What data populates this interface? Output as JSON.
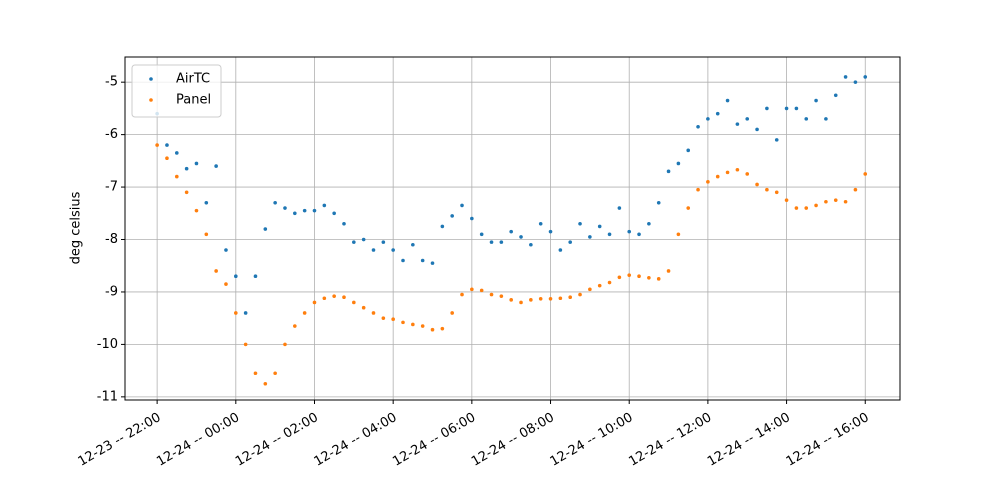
{
  "chart_data": {
    "type": "scatter",
    "ylabel": "deg celsius",
    "x": [
      "12-23 -- 22:00",
      "12-23 -- 22:15",
      "12-23 -- 22:30",
      "12-23 -- 22:45",
      "12-23 -- 23:00",
      "12-23 -- 23:15",
      "12-23 -- 23:30",
      "12-23 -- 23:45",
      "12-24 -- 00:00",
      "12-24 -- 00:15",
      "12-24 -- 00:30",
      "12-24 -- 00:45",
      "12-24 -- 01:00",
      "12-24 -- 01:15",
      "12-24 -- 01:30",
      "12-24 -- 01:45",
      "12-24 -- 02:00",
      "12-24 -- 02:15",
      "12-24 -- 02:30",
      "12-24 -- 02:45",
      "12-24 -- 03:00",
      "12-24 -- 03:15",
      "12-24 -- 03:30",
      "12-24 -- 03:45",
      "12-24 -- 04:00",
      "12-24 -- 04:15",
      "12-24 -- 04:30",
      "12-24 -- 04:45",
      "12-24 -- 05:00",
      "12-24 -- 05:15",
      "12-24 -- 05:30",
      "12-24 -- 05:45",
      "12-24 -- 06:00",
      "12-24 -- 06:15",
      "12-24 -- 06:30",
      "12-24 -- 06:45",
      "12-24 -- 07:00",
      "12-24 -- 07:15",
      "12-24 -- 07:30",
      "12-24 -- 07:45",
      "12-24 -- 08:00",
      "12-24 -- 08:15",
      "12-24 -- 08:30",
      "12-24 -- 08:45",
      "12-24 -- 09:00",
      "12-24 -- 09:15",
      "12-24 -- 09:30",
      "12-24 -- 09:45",
      "12-24 -- 10:00",
      "12-24 -- 10:15",
      "12-24 -- 10:30",
      "12-24 -- 10:45",
      "12-24 -- 11:00",
      "12-24 -- 11:15",
      "12-24 -- 11:30",
      "12-24 -- 11:45",
      "12-24 -- 12:00",
      "12-24 -- 12:15",
      "12-24 -- 12:30",
      "12-24 -- 12:45",
      "12-24 -- 13:00",
      "12-24 -- 13:15",
      "12-24 -- 13:30",
      "12-24 -- 13:45",
      "12-24 -- 14:00",
      "12-24 -- 14:15",
      "12-24 -- 14:30",
      "12-24 -- 14:45",
      "12-24 -- 15:00",
      "12-24 -- 15:15",
      "12-24 -- 15:30",
      "12-24 -- 15:45",
      "12-24 -- 16:00"
    ],
    "series": [
      {
        "name": "AirTC",
        "color": "#1f77b4",
        "values": [
          -5.6,
          -6.2,
          -6.35,
          -6.65,
          -6.55,
          -7.3,
          -6.6,
          -8.2,
          -8.7,
          -9.4,
          -8.7,
          -7.8,
          -7.3,
          -7.4,
          -7.5,
          -7.45,
          -7.45,
          -7.35,
          -7.5,
          -7.7,
          -8.05,
          -8.0,
          -8.2,
          -8.05,
          -8.2,
          -8.4,
          -8.1,
          -8.4,
          -8.45,
          -7.75,
          -7.55,
          -7.35,
          -7.6,
          -7.9,
          -8.05,
          -8.05,
          -7.85,
          -7.95,
          -8.1,
          -7.7,
          -7.85,
          -8.2,
          -8.05,
          -7.7,
          -7.95,
          -7.75,
          -7.9,
          -7.4,
          -7.85,
          -7.9,
          -7.7,
          -7.3,
          -6.7,
          -6.55,
          -6.3,
          -5.85,
          -5.7,
          -5.6,
          -5.35,
          -5.8,
          -5.7,
          -5.9,
          -5.5,
          -6.1,
          -5.5,
          -5.5,
          -5.7,
          -5.35,
          -5.7,
          -5.25,
          -4.9,
          -5.0,
          -4.9
        ]
      },
      {
        "name": "Panel",
        "color": "#ff7f0e",
        "values": [
          -6.2,
          -6.45,
          -6.8,
          -7.1,
          -7.45,
          -7.9,
          -8.6,
          -8.85,
          -9.4,
          -10.0,
          -10.55,
          -10.75,
          -10.55,
          -10.0,
          -9.65,
          -9.4,
          -9.2,
          -9.12,
          -9.08,
          -9.1,
          -9.2,
          -9.3,
          -9.4,
          -9.5,
          -9.52,
          -9.58,
          -9.62,
          -9.65,
          -9.72,
          -9.7,
          -9.4,
          -9.05,
          -8.95,
          -8.97,
          -9.05,
          -9.08,
          -9.15,
          -9.2,
          -9.15,
          -9.13,
          -9.13,
          -9.12,
          -9.1,
          -9.05,
          -8.95,
          -8.88,
          -8.82,
          -8.72,
          -8.68,
          -8.7,
          -8.73,
          -8.75,
          -8.6,
          -7.9,
          -7.4,
          -7.05,
          -6.9,
          -6.8,
          -6.72,
          -6.67,
          -6.75,
          -6.95,
          -7.05,
          -7.1,
          -7.25,
          -7.4,
          -7.4,
          -7.35,
          -7.28,
          -7.25,
          -7.28,
          -7.05,
          -6.75
        ]
      }
    ],
    "xlim": [
      "12-23 -- 21:11",
      "12-24 -- 16:53"
    ],
    "xticks": [
      "12-23 -- 22:00",
      "12-24 -- 00:00",
      "12-24 -- 02:00",
      "12-24 -- 04:00",
      "12-24 -- 06:00",
      "12-24 -- 08:00",
      "12-24 -- 10:00",
      "12-24 -- 12:00",
      "12-24 -- 14:00",
      "12-24 -- 16:00"
    ],
    "ylim": [
      -11.06,
      -4.52
    ],
    "yticks": [
      -11,
      -10,
      -9,
      -8,
      -7,
      -6,
      -5
    ],
    "grid": true,
    "legend": "upper-left"
  }
}
